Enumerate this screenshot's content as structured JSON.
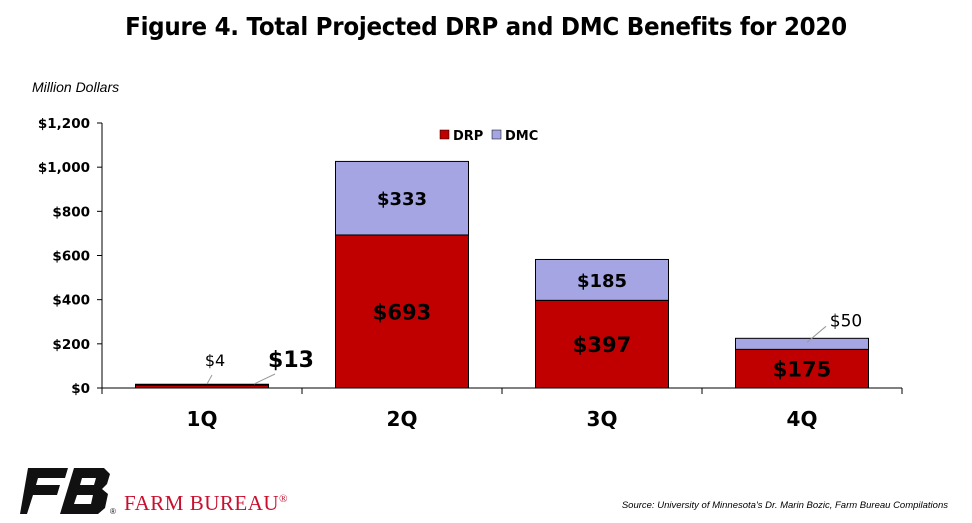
{
  "chart_data": {
    "type": "bar",
    "stacked": true,
    "title": "Figure 4. Total Projected DRP and DMC Benefits for 2020",
    "ylabel": "Million Dollars",
    "categories": [
      "1Q",
      "2Q",
      "3Q",
      "4Q"
    ],
    "series": [
      {
        "name": "DRP",
        "color": "#c00000",
        "values": [
          13,
          693,
          397,
          175
        ],
        "labels": [
          "$13",
          "$693",
          "$397",
          "$175"
        ]
      },
      {
        "name": "DMC",
        "color": "#a5a5e3",
        "values": [
          4,
          333,
          185,
          50
        ],
        "labels": [
          "$4",
          "$333",
          "$185",
          "$50"
        ]
      }
    ],
    "ylim": [
      0,
      1200
    ],
    "yticks": [
      0,
      200,
      400,
      600,
      800,
      1000,
      1200
    ],
    "ytick_labels": [
      "$0",
      "$200",
      "$400",
      "$600",
      "$800",
      "$1,000",
      "$1,200"
    ],
    "legend": "top-center",
    "grid": false
  },
  "footer": {
    "brand": "FARM BUREAU",
    "brand_mark": "®",
    "source": "Source: University of Minnesota's Dr. Marin Bozic, Farm Bureau Compilations"
  }
}
